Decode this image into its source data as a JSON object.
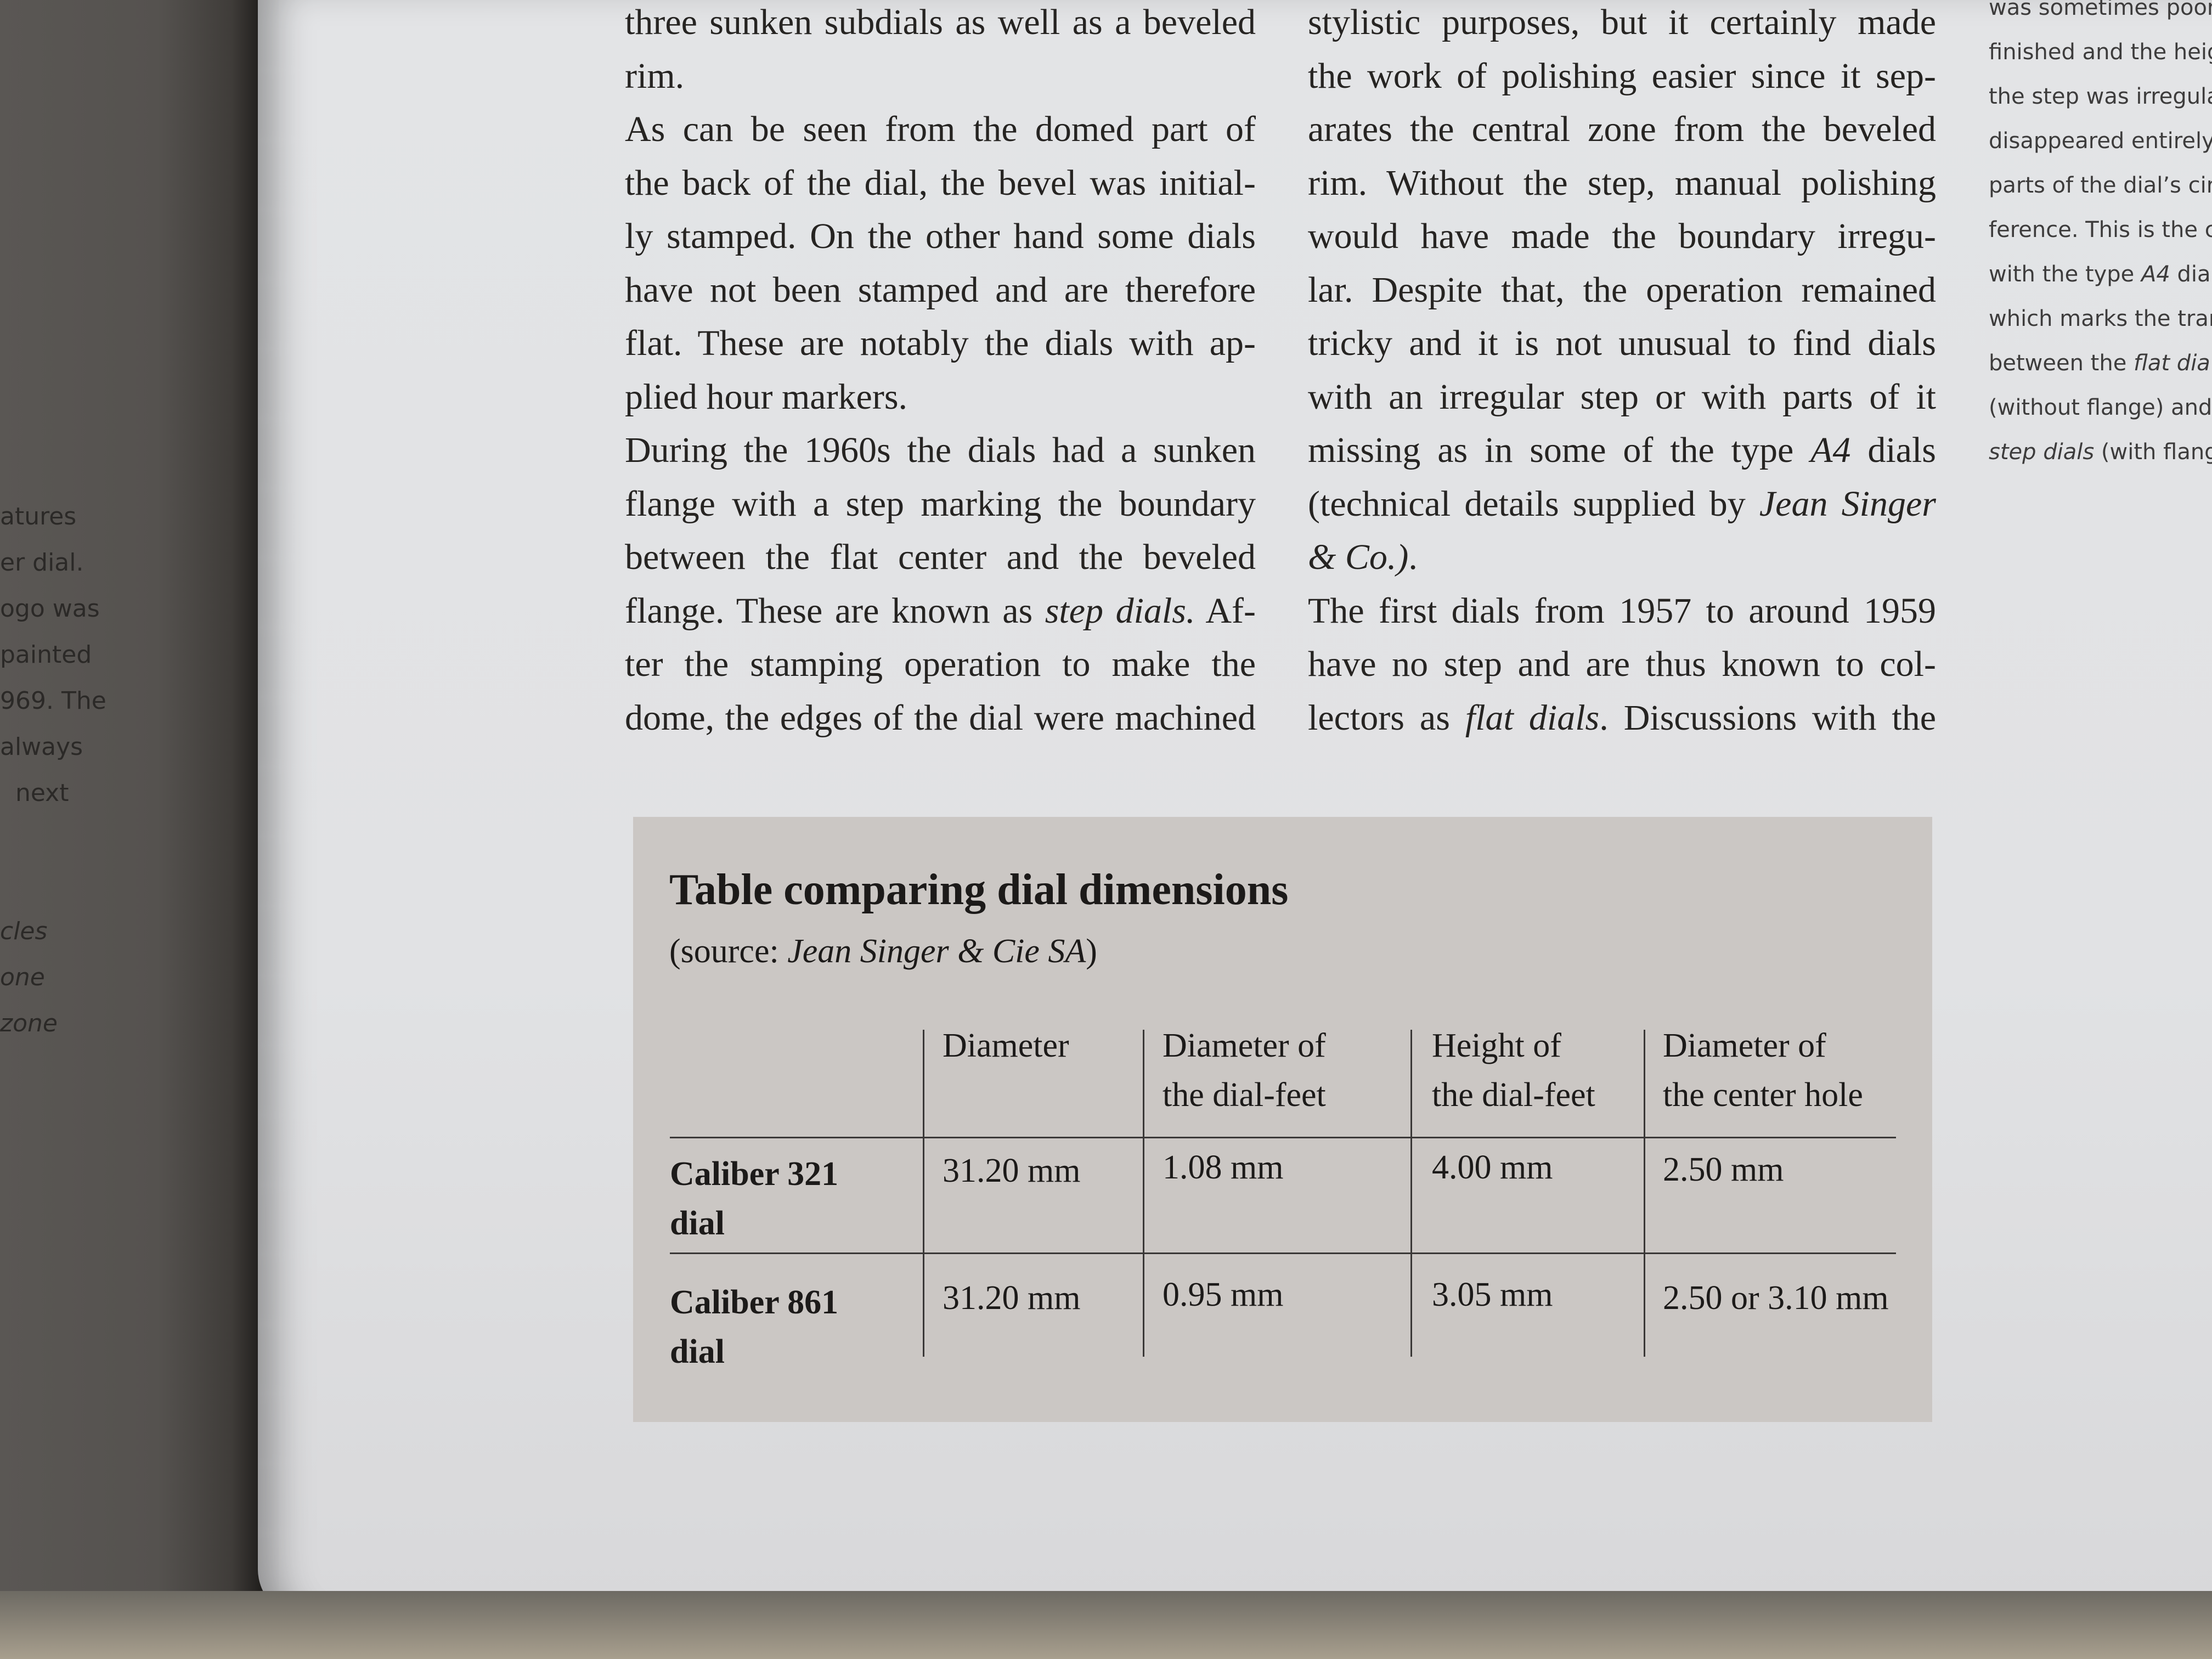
{
  "left_margin": {
    "lines": [
      [
        {
          "t": "atures"
        }
      ],
      [
        {
          "t": "er dial."
        }
      ],
      [
        {
          "t": "ogo was"
        }
      ],
      [
        {
          "t": "painted"
        }
      ],
      [
        {
          "t": "969. The"
        }
      ],
      [
        {
          "t": "always"
        }
      ],
      [
        {
          "t": "  next"
        }
      ],
      [
        {
          "t": ""
        }
      ],
      [
        {
          "t": ""
        }
      ],
      [
        {
          "t": "cles",
          "i": true
        }
      ],
      [
        {
          "t": "one",
          "i": true
        }
      ],
      [
        {
          "t": "zone",
          "i": true
        }
      ]
    ]
  },
  "column_1": {
    "lines": [
      [
        {
          "t": "three sunken subdials as well as a beveled"
        }
      ],
      [
        {
          "t": "rim."
        }
      ],
      [
        {
          "t": "As can be seen from the domed part of"
        }
      ],
      [
        {
          "t": "the back of the dial, the bevel was initial-"
        }
      ],
      [
        {
          "t": "ly stamped. On the other hand some dials"
        }
      ],
      [
        {
          "t": "have not been stamped and are therefore"
        }
      ],
      [
        {
          "t": "flat. These are notably the dials with ap-"
        }
      ],
      [
        {
          "t": "plied hour markers."
        }
      ],
      [
        {
          "t": "During the 1960s the dials had a sunken"
        }
      ],
      [
        {
          "t": "flange with a step marking the boundary"
        }
      ],
      [
        {
          "t": "between the flat center and the beveled"
        }
      ],
      [
        {
          "t": "flange. These are known as "
        },
        {
          "t": "step dials.",
          "i": true
        },
        {
          "t": " Af-"
        }
      ],
      [
        {
          "t": "ter the stamping operation to make the"
        }
      ],
      [
        {
          "t": "dome, the edges of the dial were machined"
        }
      ]
    ],
    "last_lines": [
      1,
      7
    ]
  },
  "column_2": {
    "lines": [
      [
        {
          "t": "stylistic purposes, but it certainly made"
        }
      ],
      [
        {
          "t": "the work of polishing easier since it sep-"
        }
      ],
      [
        {
          "t": "arates the central zone from the beveled"
        }
      ],
      [
        {
          "t": "rim. Without the step, manual polishing"
        }
      ],
      [
        {
          "t": "would have made the boundary irregu-"
        }
      ],
      [
        {
          "t": "lar. Despite that, the operation remained"
        }
      ],
      [
        {
          "t": "tricky and it is not unusual to find dials"
        }
      ],
      [
        {
          "t": "with an irregular step or with parts of it"
        }
      ],
      [
        {
          "t": "missing as in some of the type "
        },
        {
          "t": "A4",
          "i": true
        },
        {
          "t": " dials"
        }
      ],
      [
        {
          "t": "(technical details supplied by "
        },
        {
          "t": "Jean Singer",
          "i": true
        }
      ],
      [
        {
          "t": "& Co.)",
          "i": true
        },
        {
          "t": "."
        }
      ],
      [
        {
          "t": "The first dials from 1957 to around 1959"
        }
      ],
      [
        {
          "t": "have no step and are thus known to col-"
        }
      ],
      [
        {
          "t": "lectors as "
        },
        {
          "t": "flat dials",
          "i": true
        },
        {
          "t": ". Discussions with the"
        }
      ]
    ],
    "last_lines": [
      10
    ]
  },
  "right_margin": {
    "lines": [
      [
        {
          "t": "was sometimes poor"
        }
      ],
      [
        {
          "t": "finished and the heig"
        }
      ],
      [
        {
          "t": "the step was irregula"
        }
      ],
      [
        {
          "t": "disappeared entirely"
        }
      ],
      [
        {
          "t": "parts of the dial’s cir"
        }
      ],
      [
        {
          "t": "ference. This is the c"
        }
      ],
      [
        {
          "t": "with the type "
        },
        {
          "t": "A4",
          "i": true
        },
        {
          "t": " dia"
        }
      ],
      [
        {
          "t": "which marks the tran"
        }
      ],
      [
        {
          "t": "between the "
        },
        {
          "t": "flat dia",
          "i": true
        }
      ],
      [
        {
          "t": "(without flange) and"
        }
      ],
      [
        {
          "t": "step dials",
          "i": true
        },
        {
          "t": " (with flang"
        }
      ]
    ]
  },
  "table": {
    "title": "Table comparing dial dimensions",
    "source_prefix": "(source: ",
    "source_name": "Jean Singer & Cie SA",
    "source_suffix": ")",
    "headers": [
      "",
      "Diameter",
      "Diameter of\nthe dial-feet",
      "Height of\nthe dial-feet",
      "Diameter of\nthe center hole"
    ],
    "rows": [
      [
        "Caliber 321\ndial",
        "31.20 mm",
        "1.08 mm",
        "4.00 mm",
        "2.50 mm"
      ],
      [
        "Caliber 861\ndial",
        "31.20 mm",
        "0.95 mm",
        "3.05 mm",
        "2.50 or 3.10 mm"
      ]
    ],
    "background_color": "#cbc7c4"
  }
}
